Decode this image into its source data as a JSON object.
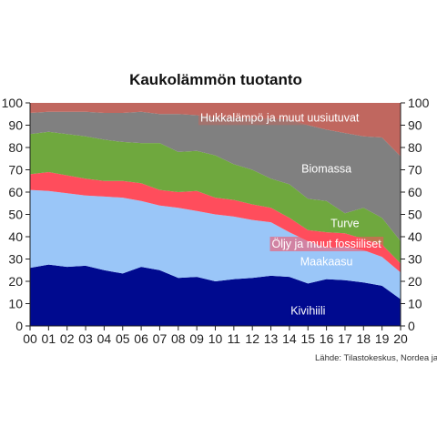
{
  "chart_data": {
    "type": "area",
    "title": "Kaukolämmön tuotanto",
    "source": "Lähde: Tilastokeskus, Nordea ja Macrobond",
    "x": [
      2000,
      2001,
      2002,
      2003,
      2004,
      2005,
      2006,
      2007,
      2008,
      2009,
      2010,
      2011,
      2012,
      2013,
      2014,
      2015,
      2016,
      2017,
      2018,
      2019,
      2020
    ],
    "x_tick_labels": [
      "00",
      "01",
      "02",
      "03",
      "04",
      "05",
      "06",
      "07",
      "08",
      "09",
      "10",
      "11",
      "12",
      "13",
      "14",
      "15",
      "16",
      "17",
      "18",
      "19",
      "20"
    ],
    "ylim": [
      0,
      100
    ],
    "y_ticks": [
      0,
      10,
      20,
      30,
      40,
      50,
      60,
      70,
      80,
      90,
      100
    ],
    "y_tick_labels": [
      "0",
      "10",
      "20",
      "30",
      "40",
      "50",
      "60",
      "70",
      "80",
      "90",
      "100"
    ],
    "grid": false,
    "stacked": true,
    "series": [
      {
        "name": "Kivihiili",
        "color": "#000a8f",
        "values": [
          26,
          27.5,
          26.5,
          27,
          25,
          23.5,
          26.5,
          25,
          21.5,
          22,
          20,
          21,
          21.5,
          22.5,
          22,
          19,
          21,
          20.5,
          19.5,
          18,
          12
        ]
      },
      {
        "name": "Maakaasu",
        "color": "#9ac6f8",
        "values": [
          35,
          33,
          33,
          31.5,
          33,
          34,
          29.5,
          29,
          31.5,
          29.5,
          30,
          28,
          26,
          24,
          20,
          19,
          14,
          15,
          14.5,
          13,
          12
        ]
      },
      {
        "name": "Öljy ja muut fossiiliset",
        "color": "#ff4d5c",
        "values": [
          7,
          8.5,
          8,
          7.5,
          7,
          7.5,
          8,
          7,
          7,
          9,
          7.5,
          7.5,
          7,
          6.5,
          6.5,
          5,
          7,
          6,
          5,
          5.5,
          4
        ]
      },
      {
        "name": "Turve",
        "color": "#6fa83e",
        "values": [
          18,
          18,
          18.5,
          19,
          18.5,
          17.5,
          18,
          21,
          18,
          18,
          19,
          16,
          15.5,
          13,
          15,
          14,
          14,
          9,
          14,
          12,
          10
        ]
      },
      {
        "name": "Biomassa",
        "color": "#808080",
        "values": [
          9.5,
          9,
          10,
          11,
          12,
          13,
          14,
          13,
          17,
          16,
          17,
          21,
          23,
          27,
          29,
          33,
          32,
          36,
          32,
          36,
          38
        ]
      },
      {
        "name": "Hukkalämpö ja muut uusiutuvat",
        "color": "#c0675f",
        "values": [
          4.5,
          4,
          4,
          4,
          4.5,
          4.5,
          4,
          5,
          5,
          5.5,
          6.5,
          6.5,
          7,
          7,
          7.5,
          10,
          12,
          13.5,
          15,
          15.5,
          24
        ]
      }
    ]
  }
}
